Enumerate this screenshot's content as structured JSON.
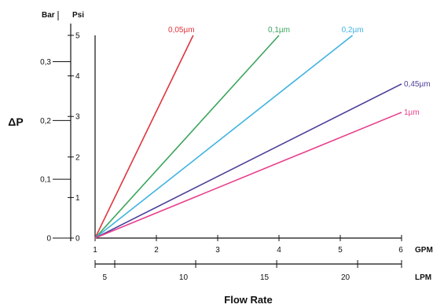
{
  "chart_data": {
    "type": "line",
    "xlabel": "Flow Rate",
    "ylabel": "ΔP",
    "axes": {
      "psi": {
        "unit": "Psi",
        "ticks": [
          "0",
          "1",
          "2",
          "3",
          "4",
          "5"
        ],
        "range": [
          0,
          5
        ]
      },
      "bar": {
        "unit": "Bar",
        "ticks": [
          "0",
          "0,1",
          "0,2",
          "0,3"
        ],
        "values": [
          0,
          0.1,
          0.2,
          0.3
        ]
      },
      "gpm": {
        "unit": "GPM",
        "ticks": [
          "1",
          "2",
          "3",
          "4",
          "5",
          "6"
        ],
        "range": [
          1,
          6
        ]
      },
      "lpm": {
        "unit": "LPM",
        "ticks": [
          "5",
          "10",
          "15",
          "20"
        ],
        "values": [
          5,
          10,
          15,
          20
        ]
      }
    },
    "grid": false,
    "series": [
      {
        "name": "0,05µm",
        "color": "#e0353d",
        "x": [
          1,
          2.6
        ],
        "y": [
          0,
          5
        ]
      },
      {
        "name": "0,1µm",
        "color": "#3aa55c",
        "x": [
          1,
          4
        ],
        "y": [
          0,
          5
        ]
      },
      {
        "name": "0,2µm",
        "color": "#3fb3e0",
        "x": [
          1,
          5.2
        ],
        "y": [
          0,
          5
        ]
      },
      {
        "name": "0,45µm",
        "color": "#4a3f9a",
        "x": [
          1,
          6
        ],
        "y": [
          0,
          3.8
        ]
      },
      {
        "name": "1µm",
        "color": "#e83e8c",
        "x": [
          1,
          6
        ],
        "y": [
          0,
          3.1
        ]
      }
    ]
  }
}
